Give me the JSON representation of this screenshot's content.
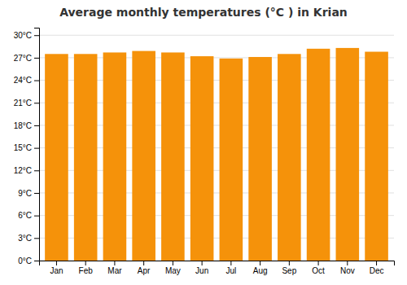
{
  "chart_data": {
    "type": "bar",
    "title": "Average monthly temperatures (°C ) in Krian",
    "categories": [
      "Jan",
      "Feb",
      "Mar",
      "Apr",
      "May",
      "Jun",
      "Jul",
      "Aug",
      "Sep",
      "Oct",
      "Nov",
      "Dec"
    ],
    "values": [
      27.5,
      27.5,
      27.7,
      27.9,
      27.7,
      27.2,
      26.9,
      27.1,
      27.5,
      28.2,
      28.3,
      27.8
    ],
    "color": "#F5920A",
    "ylim": [
      0,
      31
    ],
    "yticks": [
      {
        "value": 0,
        "label": "0°C"
      },
      {
        "value": 3,
        "label": "3°C"
      },
      {
        "value": 6,
        "label": "6°C"
      },
      {
        "value": 9,
        "label": "9°C"
      },
      {
        "value": 12,
        "label": "12°C"
      },
      {
        "value": 15,
        "label": "15°C"
      },
      {
        "value": 18,
        "label": "18°C"
      },
      {
        "value": 21,
        "label": "21°C"
      },
      {
        "value": 24,
        "label": "24°C"
      },
      {
        "value": 27,
        "label": "27°C"
      },
      {
        "value": 30,
        "label": "30°C"
      }
    ],
    "grid": true
  }
}
